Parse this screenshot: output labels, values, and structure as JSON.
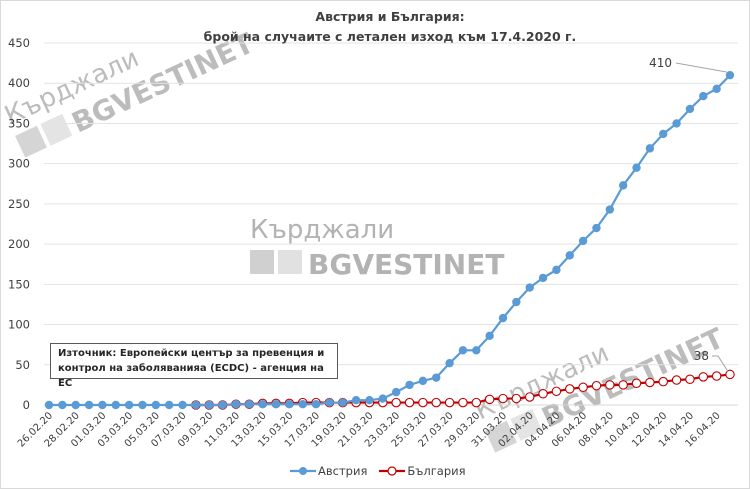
{
  "chart_data": {
    "type": "line",
    "title": "Австрия и България:",
    "subtitle": "брой на случаите с летален изход към 17.4.2020 г.",
    "xlabel": "",
    "ylabel": "",
    "ylim": [
      0,
      450
    ],
    "yticks": [
      0,
      50,
      100,
      150,
      200,
      250,
      300,
      350,
      400,
      450
    ],
    "grid": true,
    "legend_position": "bottom",
    "x": [
      "26.02.20",
      "27.02.20",
      "28.02.20",
      "29.02.20",
      "01.03.20",
      "02.03.20",
      "03.03.20",
      "04.03.20",
      "05.03.20",
      "06.03.20",
      "07.03.20",
      "08.03.20",
      "09.03.20",
      "10.03.20",
      "11.03.20",
      "12.03.20",
      "13.03.20",
      "14.03.20",
      "15.03.20",
      "16.03.20",
      "17.03.20",
      "18.03.20",
      "19.03.20",
      "20.03.20",
      "21.03.20",
      "22.03.20",
      "23.03.20",
      "24.03.20",
      "25.03.20",
      "26.03.20",
      "27.03.20",
      "28.03.20",
      "29.03.20",
      "30.03.20",
      "31.03.20",
      "01.04.20",
      "02.04.20",
      "03.04.20",
      "04.04.20",
      "05.04.20",
      "06.04.20",
      "07.04.20",
      "08.04.20",
      "09.04.20",
      "10.04.20",
      "11.04.20",
      "12.04.20",
      "13.04.20",
      "14.04.20",
      "15.04.20",
      "16.04.20",
      "17.04.20"
    ],
    "x_tick_labels": [
      "26.02.20",
      "28.02.20",
      "01.03.20",
      "03.03.20",
      "05.03.20",
      "07.03.20",
      "09.03.20",
      "11.03.20",
      "13.03.20",
      "15.03.20",
      "17.03.20",
      "19.03.20",
      "21.03.20",
      "23.03.20",
      "25.03.20",
      "27.03.20",
      "29.03.20",
      "31.03.20",
      "02.04.20",
      "04.04.20",
      "06.04.20",
      "08.04.20",
      "10.04.20",
      "12.04.20",
      "14.04.20",
      "16.04.20"
    ],
    "series": [
      {
        "name": "Австрия",
        "color": "#5b9bd5",
        "marker": "filled-circle",
        "values": [
          0,
          0,
          0,
          0,
          0,
          0,
          0,
          0,
          0,
          0,
          0,
          0,
          0,
          0,
          1,
          1,
          1,
          1,
          1,
          1,
          1,
          3,
          3,
          6,
          6,
          8,
          16,
          25,
          30,
          34,
          52,
          68,
          68,
          86,
          108,
          128,
          146,
          158,
          168,
          186,
          204,
          220,
          243,
          273,
          295,
          319,
          337,
          350,
          368,
          384,
          393,
          410
        ],
        "end_label": "410"
      },
      {
        "name": "България",
        "color": "#c00000",
        "marker": "open-circle",
        "values": [
          null,
          null,
          null,
          null,
          null,
          null,
          null,
          null,
          null,
          null,
          null,
          0,
          0,
          0,
          1,
          1,
          2,
          2,
          2,
          3,
          3,
          3,
          3,
          3,
          3,
          3,
          3,
          3,
          3,
          3,
          3,
          3,
          3,
          7,
          8,
          8,
          10,
          14,
          17,
          20,
          22,
          24,
          25,
          25,
          27,
          28,
          29,
          31,
          32,
          35,
          36,
          38
        ],
        "end_label": "38"
      }
    ]
  },
  "source_note": {
    "line1": "Източник: Европейски център за превенция и",
    "line2": "контрол на заболяванияа (ECDC) - агенция на ЕС"
  },
  "legend": {
    "austria": "Австрия",
    "bulgaria": "България"
  },
  "watermark": {
    "city": "Кърджали",
    "brand": "BGVESTINET"
  }
}
